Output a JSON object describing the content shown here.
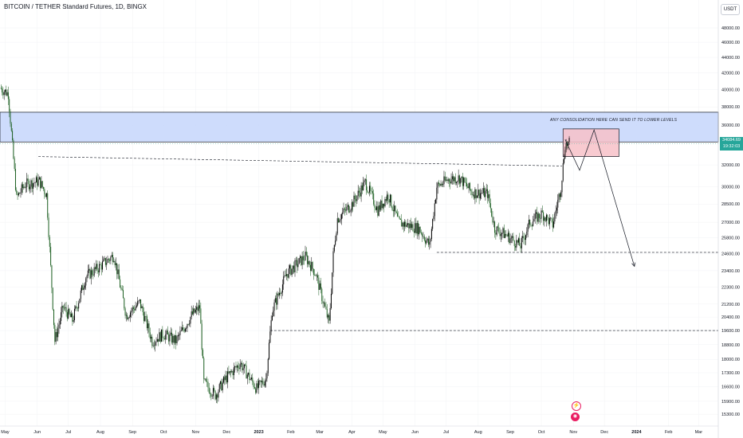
{
  "header": {
    "title": "BITCOIN / TETHER Standard Futures, 1D, BINGX",
    "currency_button": "USDT"
  },
  "price_tag": {
    "price": "34084.69",
    "countdown": "19:32:03",
    "color": "#26a69a"
  },
  "annotation": {
    "text": "ANY CONSOLIDATION HERE CAN SEND IT TO LOWER LEVELS"
  },
  "icons": {
    "flash": "flash-icon",
    "earnings": "earnings-icon"
  },
  "colors": {
    "candle_up": "#000000",
    "candle_down": "#1b5e20",
    "resistance_zone": "#c6d6fb",
    "consolidation_zone": "#f7c1c8"
  },
  "chart_data": {
    "type": "candlestick",
    "x_axis": {
      "labels": [
        "May",
        "Jun",
        "Jul",
        "Aug",
        "Sep",
        "Oct",
        "Nov",
        "Dec",
        "2023",
        "Feb",
        "Mar",
        "Apr",
        "May",
        "Jun",
        "Jul",
        "Aug",
        "Sep",
        "Oct",
        "Nov",
        "Dec",
        "2024",
        "Feb",
        "Mar"
      ],
      "range": [
        "2022-04-26",
        "2024-03-20"
      ]
    },
    "y_axis": {
      "ticks": [
        "48000.00",
        "46000.00",
        "44000.00",
        "42000.00",
        "40000.00",
        "38000.00",
        "36000.00",
        "32000.00",
        "30000.00",
        "28500.00",
        "27000.00",
        "25800.00",
        "24600.00",
        "23400.00",
        "22300.00",
        "21200.00",
        "20400.00",
        "19600.00",
        "18800.00",
        "18000.00",
        "17300.00",
        "16600.00",
        "15900.00",
        "15300.00"
      ],
      "scale": "log",
      "range": [
        14950,
        49500
      ]
    },
    "path": [
      [
        "2022-04-26",
        40200
      ],
      [
        "2022-05-04",
        39500
      ],
      [
        "2022-05-12",
        29000
      ],
      [
        "2022-05-20",
        30200
      ],
      [
        "2022-06-03",
        30500
      ],
      [
        "2022-06-10",
        29300
      ],
      [
        "2022-06-18",
        19000
      ],
      [
        "2022-06-26",
        21000
      ],
      [
        "2022-07-05",
        20200
      ],
      [
        "2022-07-18",
        23000
      ],
      [
        "2022-07-30",
        23600
      ],
      [
        "2022-08-14",
        24500
      ],
      [
        "2022-08-26",
        20500
      ],
      [
        "2022-09-08",
        21300
      ],
      [
        "2022-09-20",
        19000
      ],
      [
        "2022-10-01",
        19400
      ],
      [
        "2022-10-13",
        19000
      ],
      [
        "2022-10-28",
        20500
      ],
      [
        "2022-11-05",
        21000
      ],
      [
        "2022-11-09",
        16800
      ],
      [
        "2022-11-20",
        16200
      ],
      [
        "2022-11-30",
        17000
      ],
      [
        "2022-12-14",
        17800
      ],
      [
        "2022-12-30",
        16500
      ],
      [
        "2023-01-08",
        17000
      ],
      [
        "2023-01-14",
        20800
      ],
      [
        "2023-01-28",
        23200
      ],
      [
        "2023-02-15",
        24400
      ],
      [
        "2023-02-25",
        23200
      ],
      [
        "2023-03-10",
        20000
      ],
      [
        "2023-03-14",
        24500
      ],
      [
        "2023-03-18",
        27300
      ],
      [
        "2023-04-01",
        28500
      ],
      [
        "2023-04-14",
        30400
      ],
      [
        "2023-04-26",
        28000
      ],
      [
        "2023-05-06",
        29300
      ],
      [
        "2023-05-16",
        27000
      ],
      [
        "2023-06-05",
        26500
      ],
      [
        "2023-06-15",
        25200
      ],
      [
        "2023-06-22",
        30000
      ],
      [
        "2023-07-04",
        30700
      ],
      [
        "2023-07-14",
        30800
      ],
      [
        "2023-07-26",
        29500
      ],
      [
        "2023-08-10",
        29400
      ],
      [
        "2023-08-17",
        26500
      ],
      [
        "2023-08-28",
        26000
      ],
      [
        "2023-09-11",
        25200
      ],
      [
        "2023-09-20",
        27000
      ],
      [
        "2023-10-02",
        27700
      ],
      [
        "2023-10-12",
        26800
      ],
      [
        "2023-10-20",
        30000
      ],
      [
        "2023-10-24",
        34000
      ],
      [
        "2023-10-28",
        34084
      ]
    ],
    "annotations": [
      {
        "type": "zone",
        "label": "resistance",
        "y": [
          34250,
          37400
        ],
        "x": [
          "2022-04-26",
          "2024-03-20"
        ]
      },
      {
        "type": "zone",
        "label": "consolidation",
        "y": [
          32800,
          35600
        ],
        "x": [
          "2023-10-22",
          "2023-12-15"
        ]
      },
      {
        "type": "dashed_line",
        "from": [
          "2022-06-02",
          32800
        ],
        "to": [
          "2023-10-21",
          31900
        ]
      },
      {
        "type": "dashed_line",
        "from": [
          "2023-06-22",
          24700
        ],
        "to": [
          "2024-03-20",
          24700
        ]
      },
      {
        "type": "dashed_line",
        "from": [
          "2023-01-12",
          19600
        ],
        "to": [
          "2024-03-20",
          19600
        ]
      },
      {
        "type": "arrow_path",
        "points": [
          [
            "2023-10-24",
            34500
          ],
          [
            "2023-11-07",
            31500
          ],
          [
            "2023-11-21",
            35500
          ],
          [
            "2023-12-30",
            23700
          ]
        ]
      }
    ]
  }
}
